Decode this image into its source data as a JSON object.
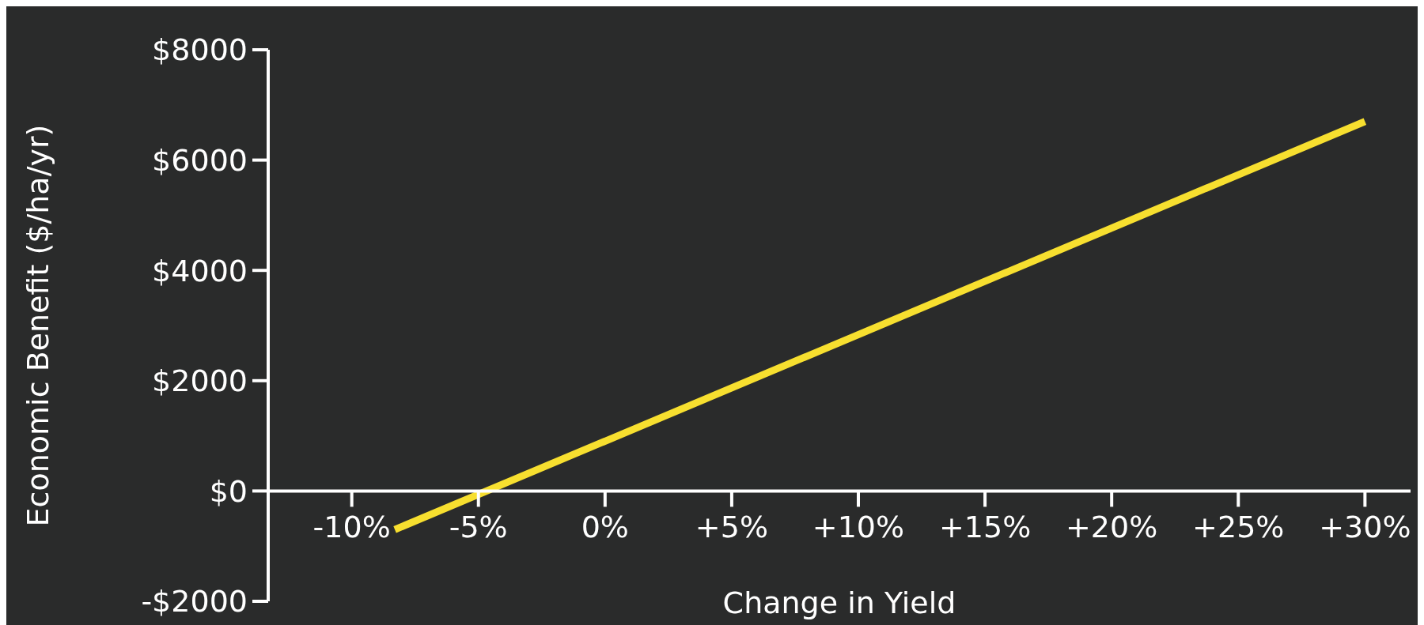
{
  "chart_data": {
    "type": "line",
    "xlabel": "Change in Yield",
    "ylabel": "Economic Benefit ($/ha/yr)",
    "x": [
      -8.3,
      30
    ],
    "values": [
      -700,
      6700
    ],
    "color": "#f7df2f",
    "xlim": [
      -13.3,
      31.8
    ],
    "ylim": [
      -2000,
      8000
    ],
    "xticks": [
      {
        "value": -10,
        "label": "-10%"
      },
      {
        "value": -5,
        "label": "-5%"
      },
      {
        "value": 0,
        "label": "0%"
      },
      {
        "value": 5,
        "label": "+5%"
      },
      {
        "value": 10,
        "label": "+10%"
      },
      {
        "value": 15,
        "label": "+15%"
      },
      {
        "value": 20,
        "label": "+20%"
      },
      {
        "value": 25,
        "label": "+25%"
      },
      {
        "value": 30,
        "label": "+30%"
      }
    ],
    "yticks": [
      {
        "value": -2000,
        "label": "-$2000"
      },
      {
        "value": 0,
        "label": "$0"
      },
      {
        "value": 2000,
        "label": "$2000"
      },
      {
        "value": 4000,
        "label": "$4000"
      },
      {
        "value": 6000,
        "label": "$6000"
      },
      {
        "value": 8000,
        "label": "$8000"
      }
    ],
    "grid": false
  }
}
